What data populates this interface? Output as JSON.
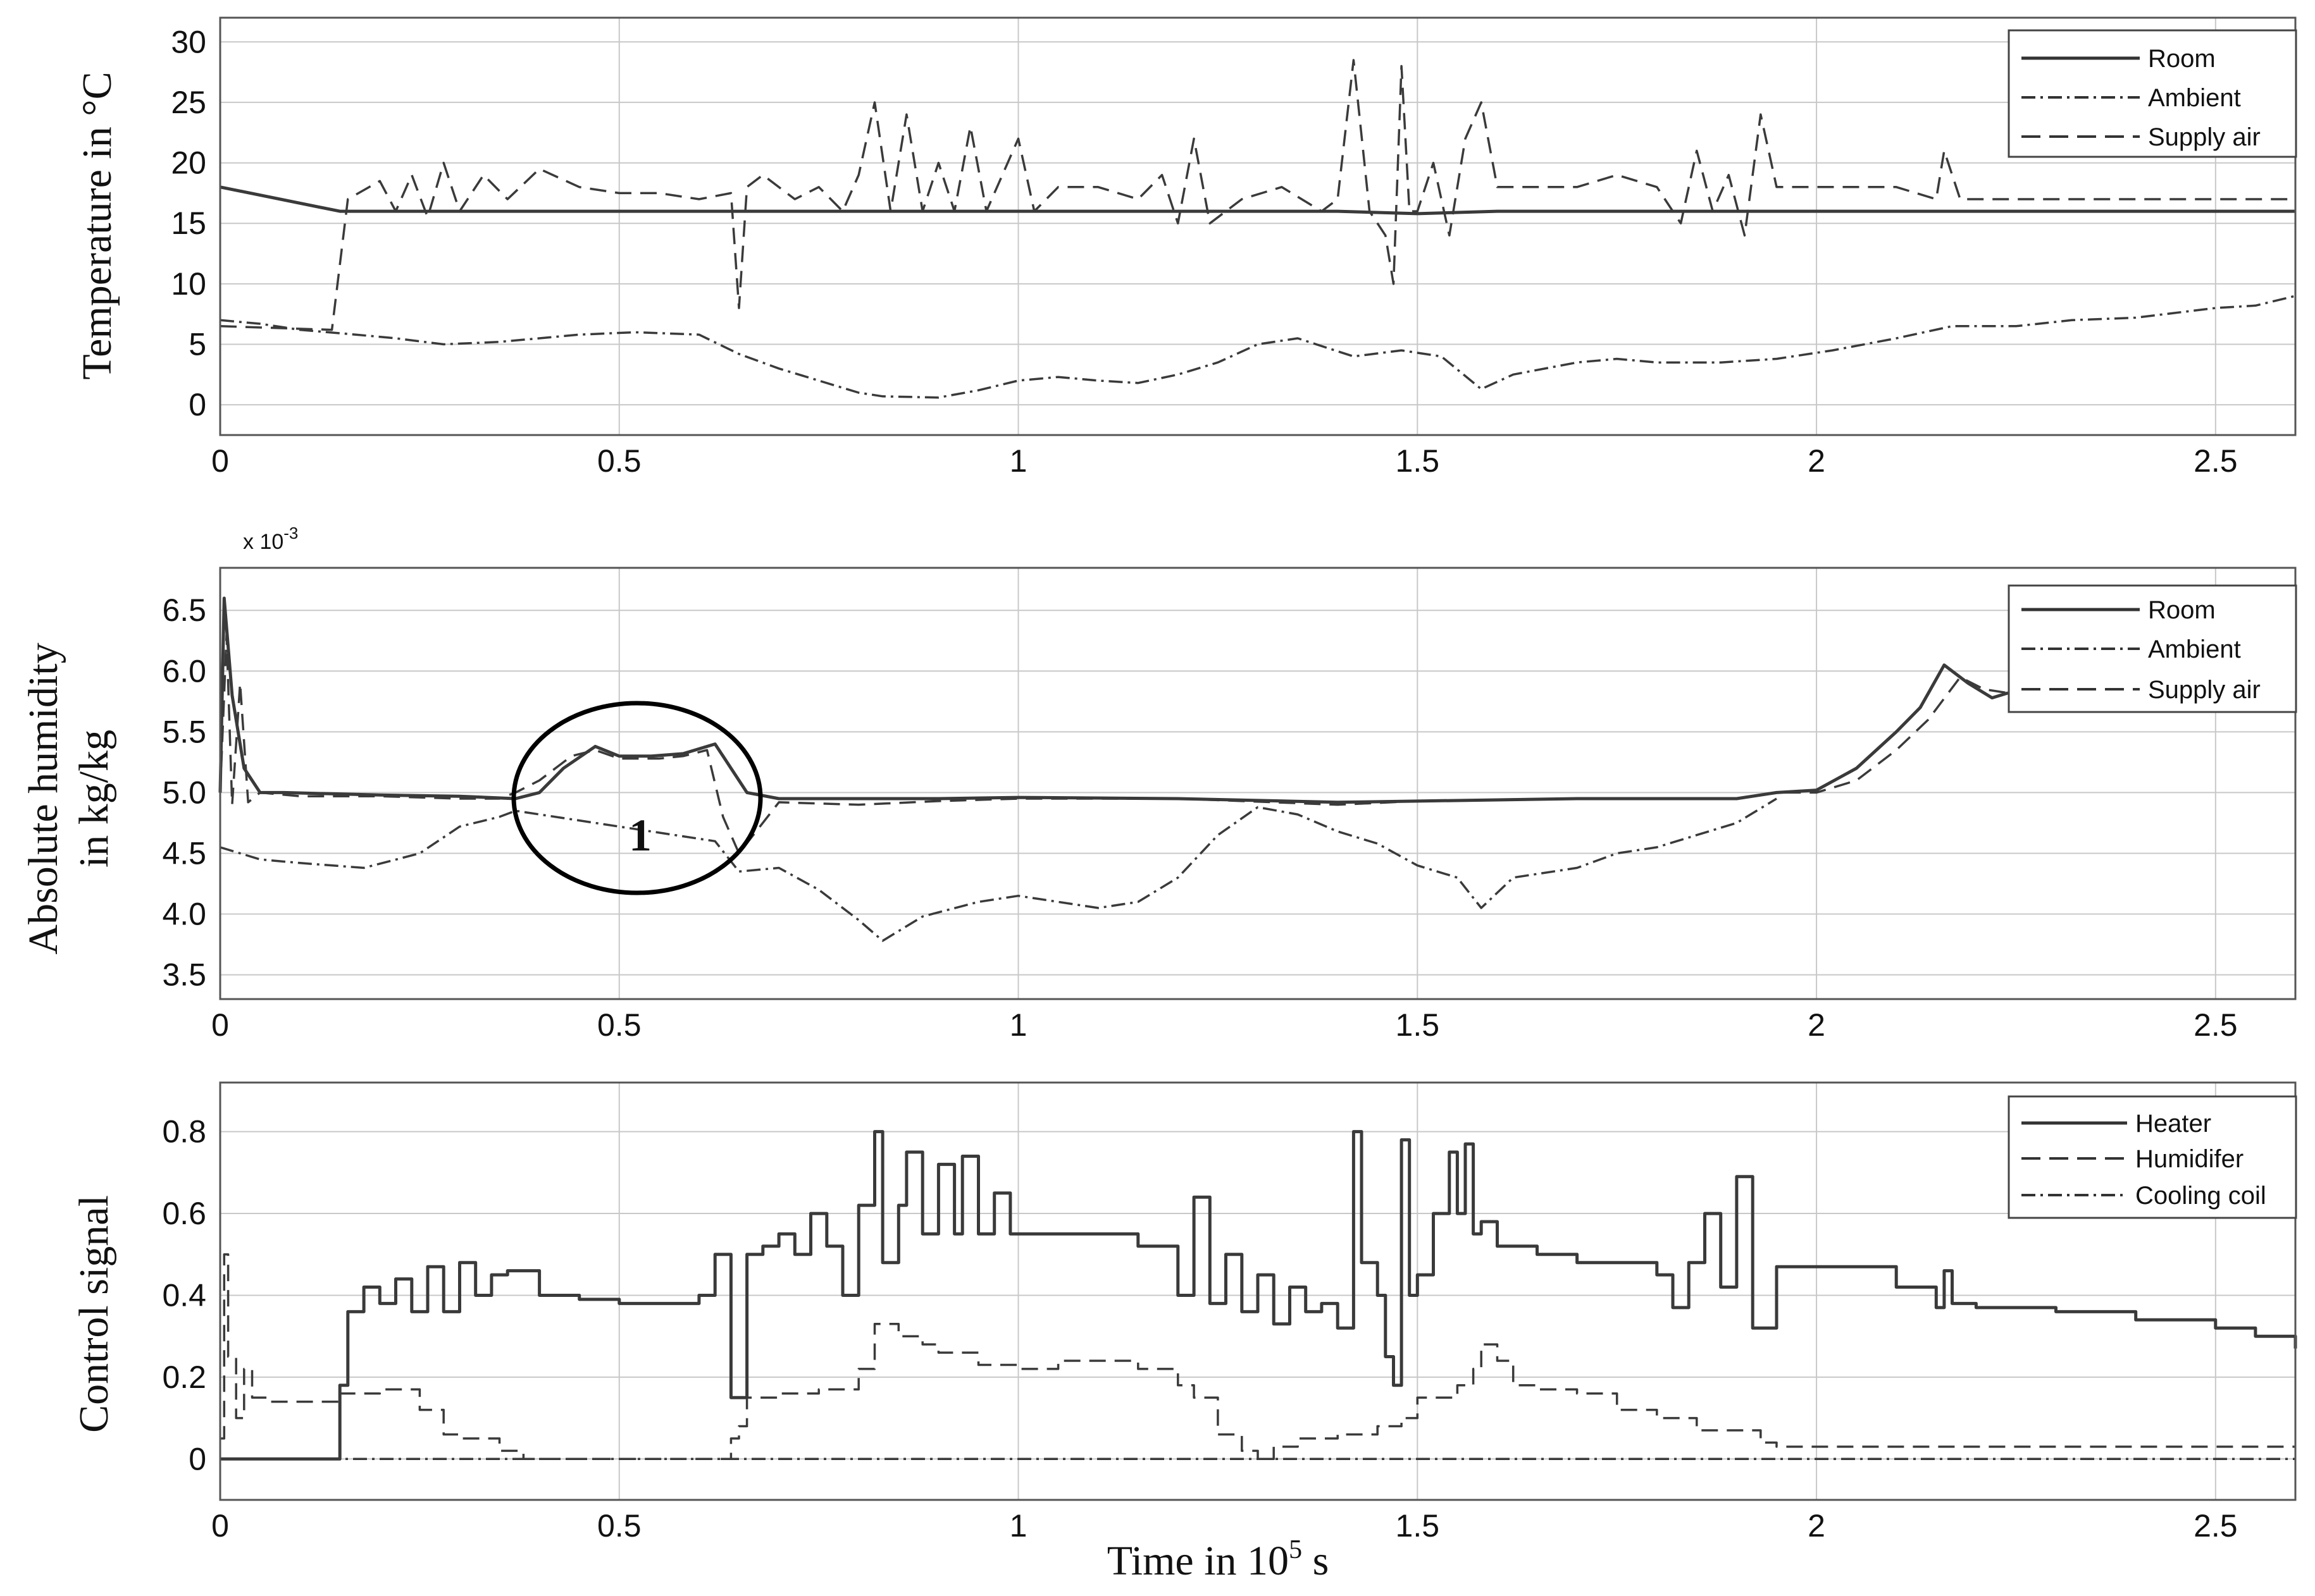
{
  "chart_data": [
    {
      "type": "line",
      "ylabel": "Temperature in °C",
      "xlim": [
        0,
        2.6
      ],
      "ylim": [
        -2.5,
        32
      ],
      "xticks": [
        0,
        0.5,
        1,
        1.5,
        2,
        2.5
      ],
      "xtick_labels": [
        "0",
        "0.5",
        "1",
        "1.5",
        "2",
        "2.5"
      ],
      "yticks": [
        0,
        5,
        10,
        15,
        20,
        25,
        30
      ],
      "ytick_labels": [
        "0",
        "5",
        "10",
        "15",
        "20",
        "25",
        "30"
      ],
      "grid": true,
      "legend_position": "top-right",
      "series": [
        {
          "name": "Room",
          "style": "solid",
          "x": [
            0,
            0.15,
            0.3,
            0.6,
            0.8,
            1.0,
            1.2,
            1.4,
            1.5,
            1.6,
            1.8,
            2.0,
            2.2,
            2.4,
            2.6
          ],
          "y": [
            18,
            16,
            16,
            16,
            16,
            16,
            16,
            16,
            15.8,
            16,
            16,
            16,
            16,
            16,
            16
          ]
        },
        {
          "name": "Ambient",
          "style": "dashdot",
          "x": [
            0,
            0.05,
            0.1,
            0.17,
            0.22,
            0.28,
            0.35,
            0.45,
            0.52,
            0.6,
            0.65,
            0.7,
            0.75,
            0.8,
            0.83,
            0.9,
            0.95,
            1.0,
            1.05,
            1.1,
            1.15,
            1.2,
            1.25,
            1.3,
            1.35,
            1.42,
            1.48,
            1.53,
            1.58,
            1.62,
            1.7,
            1.75,
            1.8,
            1.88,
            1.95,
            2.02,
            2.1,
            2.17,
            2.25,
            2.32,
            2.4,
            2.5,
            2.55,
            2.6
          ],
          "y": [
            7,
            6.7,
            6.2,
            5.8,
            5.5,
            5.0,
            5.2,
            5.8,
            6.0,
            5.8,
            4.2,
            3.0,
            2.0,
            1.0,
            0.7,
            0.6,
            1.2,
            2.0,
            2.3,
            2.0,
            1.8,
            2.5,
            3.5,
            5.0,
            5.5,
            4.0,
            4.5,
            4.0,
            1.3,
            2.5,
            3.5,
            3.8,
            3.5,
            3.5,
            3.8,
            4.5,
            5.5,
            6.5,
            6.5,
            7.0,
            7.2,
            8.0,
            8.2,
            9.0
          ]
        },
        {
          "name": "Supply air",
          "style": "dashed",
          "x": [
            0,
            0.14,
            0.16,
            0.2,
            0.22,
            0.24,
            0.26,
            0.28,
            0.3,
            0.33,
            0.36,
            0.4,
            0.45,
            0.5,
            0.55,
            0.6,
            0.64,
            0.65,
            0.66,
            0.68,
            0.72,
            0.75,
            0.78,
            0.8,
            0.82,
            0.84,
            0.86,
            0.88,
            0.9,
            0.92,
            0.94,
            0.96,
            0.98,
            1.0,
            1.02,
            1.05,
            1.1,
            1.15,
            1.18,
            1.2,
            1.22,
            1.24,
            1.28,
            1.33,
            1.38,
            1.4,
            1.42,
            1.44,
            1.46,
            1.47,
            1.48,
            1.49,
            1.5,
            1.52,
            1.54,
            1.56,
            1.58,
            1.6,
            1.65,
            1.7,
            1.75,
            1.8,
            1.83,
            1.85,
            1.87,
            1.89,
            1.91,
            1.93,
            1.95,
            2.0,
            2.1,
            2.15,
            2.16,
            2.18,
            2.3,
            2.4,
            2.5,
            2.6
          ],
          "y": [
            6.5,
            6.2,
            17,
            18.5,
            16,
            19,
            15.5,
            20,
            16,
            19,
            17,
            19.5,
            18,
            17.5,
            17.5,
            17,
            17.5,
            8,
            18,
            19,
            17,
            18,
            16,
            19,
            25,
            16,
            24,
            16,
            20,
            16,
            23,
            16,
            19,
            22,
            16,
            18,
            18,
            17,
            19,
            15,
            22,
            15,
            17,
            18,
            16,
            17,
            28.5,
            16,
            14,
            10,
            28,
            16,
            16,
            20,
            14,
            22,
            25,
            18,
            18,
            18,
            19,
            18,
            15,
            21,
            16,
            19,
            14,
            24,
            18,
            18,
            18,
            17,
            21,
            17,
            17,
            17,
            17,
            17
          ]
        }
      ]
    },
    {
      "type": "line",
      "ylabel": "Absolute humidity in kg/kg",
      "ylabel_lines": [
        "Absolute humidity",
        "in kg/kg"
      ],
      "multiplier_label": "x 10",
      "multiplier_exponent": "-3",
      "xlim": [
        0,
        2.6
      ],
      "ylim": [
        3.3,
        6.85
      ],
      "xticks": [
        0,
        0.5,
        1,
        1.5,
        2,
        2.5
      ],
      "xtick_labels": [
        "0",
        "0.5",
        "1",
        "1.5",
        "2",
        "2.5"
      ],
      "yticks": [
        3.5,
        4.0,
        4.5,
        5.0,
        5.5,
        6.0,
        6.5
      ],
      "ytick_labels": [
        "3.5",
        "4.0",
        "4.5",
        "5.0",
        "5.5",
        "6.0",
        "6.5"
      ],
      "grid": true,
      "legend_position": "top-right",
      "annotation": {
        "text": "1",
        "shape": "ellipse",
        "x_center": 0.52,
        "y_center": 5.0
      },
      "series": [
        {
          "name": "Room",
          "style": "solid",
          "x": [
            0,
            0.005,
            0.015,
            0.03,
            0.05,
            0.08,
            0.2,
            0.3,
            0.37,
            0.4,
            0.43,
            0.47,
            0.5,
            0.54,
            0.58,
            0.62,
            0.64,
            0.66,
            0.7,
            0.8,
            0.9,
            1.0,
            1.2,
            1.4,
            1.5,
            1.7,
            1.9,
            1.95,
            2.0,
            2.05,
            2.1,
            2.13,
            2.16,
            2.19,
            2.22,
            2.24
          ],
          "y": [
            5.0,
            6.6,
            5.8,
            5.2,
            5.0,
            5.0,
            4.98,
            4.97,
            4.95,
            5.0,
            5.2,
            5.38,
            5.3,
            5.3,
            5.32,
            5.4,
            5.2,
            5.0,
            4.95,
            4.95,
            4.95,
            4.96,
            4.95,
            4.92,
            4.93,
            4.95,
            4.95,
            5.0,
            5.02,
            5.2,
            5.5,
            5.7,
            6.05,
            5.9,
            5.78,
            5.82
          ]
        },
        {
          "name": "Ambient",
          "style": "dashdot",
          "x": [
            0,
            0.05,
            0.1,
            0.18,
            0.25,
            0.3,
            0.35,
            0.37,
            0.62,
            0.65,
            0.7,
            0.75,
            0.8,
            0.83,
            0.88,
            0.95,
            1.0,
            1.05,
            1.1,
            1.15,
            1.2,
            1.25,
            1.3,
            1.35,
            1.4,
            1.45,
            1.5,
            1.55,
            1.58,
            1.62,
            1.7,
            1.75,
            1.8,
            1.85,
            1.9,
            1.95
          ],
          "y": [
            4.55,
            4.45,
            4.42,
            4.38,
            4.5,
            4.72,
            4.8,
            4.85,
            4.6,
            4.35,
            4.38,
            4.2,
            3.95,
            3.78,
            3.98,
            4.1,
            4.15,
            4.1,
            4.05,
            4.1,
            4.3,
            4.65,
            4.88,
            4.82,
            4.68,
            4.58,
            4.4,
            4.3,
            4.05,
            4.3,
            4.38,
            4.5,
            4.55,
            4.65,
            4.75,
            4.95
          ]
        },
        {
          "name": "Supply air",
          "style": "dashed",
          "x": [
            0,
            0.008,
            0.015,
            0.025,
            0.035,
            0.05,
            0.1,
            0.2,
            0.3,
            0.35,
            0.37,
            0.4,
            0.44,
            0.47,
            0.5,
            0.55,
            0.58,
            0.61,
            0.63,
            0.65,
            0.7,
            0.8,
            0.9,
            1.0,
            1.2,
            1.4,
            1.5,
            1.7,
            1.9,
            1.95,
            2.0,
            2.05,
            2.1,
            2.14,
            2.18,
            2.21,
            2.24
          ],
          "y": [
            5.0,
            6.3,
            4.9,
            5.9,
            4.92,
            5.0,
            4.97,
            4.97,
            4.95,
            4.95,
            5.0,
            5.1,
            5.3,
            5.35,
            5.28,
            5.28,
            5.3,
            5.35,
            4.8,
            4.5,
            4.92,
            4.9,
            4.93,
            4.95,
            4.95,
            4.9,
            4.93,
            4.95,
            4.95,
            5.0,
            5.0,
            5.1,
            5.35,
            5.6,
            5.95,
            5.85,
            5.82
          ]
        }
      ]
    },
    {
      "type": "line",
      "ylabel": "Control signal",
      "xlabel": "Time in 10",
      "xlabel_exponent": "5",
      "xlabel_unit": " s",
      "xlim": [
        0,
        2.6
      ],
      "ylim": [
        -0.1,
        0.92
      ],
      "xticks": [
        0,
        0.5,
        1,
        1.5,
        2,
        2.5
      ],
      "xtick_labels": [
        "0",
        "0.5",
        "1",
        "1.5",
        "2",
        "2.5"
      ],
      "yticks": [
        0,
        0.2,
        0.4,
        0.6,
        0.8
      ],
      "ytick_labels": [
        "0",
        "0.2",
        "0.4",
        "0.6",
        "0.8"
      ],
      "grid": true,
      "legend_position": "top-right",
      "series": [
        {
          "name": "Heater",
          "style": "solid",
          "step": true,
          "x": [
            0,
            0.15,
            0.16,
            0.18,
            0.2,
            0.22,
            0.24,
            0.26,
            0.28,
            0.3,
            0.32,
            0.34,
            0.36,
            0.4,
            0.45,
            0.5,
            0.55,
            0.6,
            0.62,
            0.64,
            0.66,
            0.68,
            0.7,
            0.72,
            0.74,
            0.76,
            0.78,
            0.8,
            0.82,
            0.83,
            0.85,
            0.86,
            0.88,
            0.9,
            0.92,
            0.93,
            0.95,
            0.97,
            0.99,
            1.0,
            1.05,
            1.1,
            1.15,
            1.2,
            1.22,
            1.24,
            1.26,
            1.28,
            1.3,
            1.32,
            1.34,
            1.36,
            1.38,
            1.4,
            1.42,
            1.43,
            1.45,
            1.46,
            1.47,
            1.48,
            1.49,
            1.5,
            1.52,
            1.54,
            1.55,
            1.56,
            1.57,
            1.58,
            1.6,
            1.65,
            1.7,
            1.75,
            1.8,
            1.82,
            1.84,
            1.86,
            1.88,
            1.9,
            1.92,
            1.95,
            2.0,
            2.1,
            2.15,
            2.16,
            2.17,
            2.2,
            2.3,
            2.4,
            2.5,
            2.55,
            2.6
          ],
          "y": [
            0,
            0.18,
            0.36,
            0.42,
            0.38,
            0.44,
            0.36,
            0.47,
            0.36,
            0.48,
            0.4,
            0.45,
            0.46,
            0.4,
            0.39,
            0.38,
            0.38,
            0.4,
            0.5,
            0.15,
            0.5,
            0.52,
            0.55,
            0.5,
            0.6,
            0.52,
            0.4,
            0.62,
            0.8,
            0.48,
            0.62,
            0.75,
            0.55,
            0.72,
            0.55,
            0.74,
            0.55,
            0.65,
            0.55,
            0.55,
            0.55,
            0.55,
            0.52,
            0.4,
            0.64,
            0.38,
            0.5,
            0.36,
            0.45,
            0.33,
            0.42,
            0.36,
            0.38,
            0.32,
            0.8,
            0.48,
            0.4,
            0.25,
            0.18,
            0.78,
            0.4,
            0.45,
            0.6,
            0.75,
            0.6,
            0.77,
            0.55,
            0.58,
            0.52,
            0.5,
            0.48,
            0.48,
            0.45,
            0.37,
            0.48,
            0.6,
            0.42,
            0.69,
            0.32,
            0.47,
            0.47,
            0.42,
            0.37,
            0.46,
            0.38,
            0.37,
            0.36,
            0.34,
            0.32,
            0.3,
            0.27
          ]
        },
        {
          "name": "Humidifer",
          "style": "dashed",
          "step": true,
          "x": [
            0,
            0.005,
            0.01,
            0.02,
            0.03,
            0.04,
            0.06,
            0.1,
            0.15,
            0.2,
            0.25,
            0.28,
            0.3,
            0.35,
            0.38,
            0.4,
            0.5,
            0.6,
            0.64,
            0.65,
            0.66,
            0.7,
            0.75,
            0.8,
            0.82,
            0.85,
            0.88,
            0.9,
            0.95,
            1.0,
            1.05,
            1.1,
            1.15,
            1.2,
            1.22,
            1.25,
            1.28,
            1.3,
            1.32,
            1.35,
            1.4,
            1.45,
            1.48,
            1.5,
            1.55,
            1.57,
            1.58,
            1.6,
            1.62,
            1.65,
            1.7,
            1.75,
            1.8,
            1.85,
            1.9,
            1.93,
            1.95
          ],
          "y": [
            0.05,
            0.5,
            0.25,
            0.1,
            0.22,
            0.15,
            0.14,
            0.14,
            0.16,
            0.17,
            0.12,
            0.06,
            0.05,
            0.02,
            0.0,
            0.0,
            0.0,
            0.0,
            0.05,
            0.08,
            0.15,
            0.16,
            0.17,
            0.22,
            0.33,
            0.3,
            0.28,
            0.26,
            0.23,
            0.22,
            0.24,
            0.24,
            0.22,
            0.18,
            0.15,
            0.06,
            0.02,
            0.0,
            0.03,
            0.05,
            0.06,
            0.08,
            0.1,
            0.15,
            0.18,
            0.22,
            0.28,
            0.24,
            0.18,
            0.17,
            0.16,
            0.12,
            0.1,
            0.07,
            0.07,
            0.04,
            0.03
          ]
        },
        {
          "name": "Cooling coil",
          "style": "dashdot",
          "step": false,
          "x": [
            0,
            2.6
          ],
          "y": [
            0,
            0
          ]
        }
      ]
    }
  ]
}
